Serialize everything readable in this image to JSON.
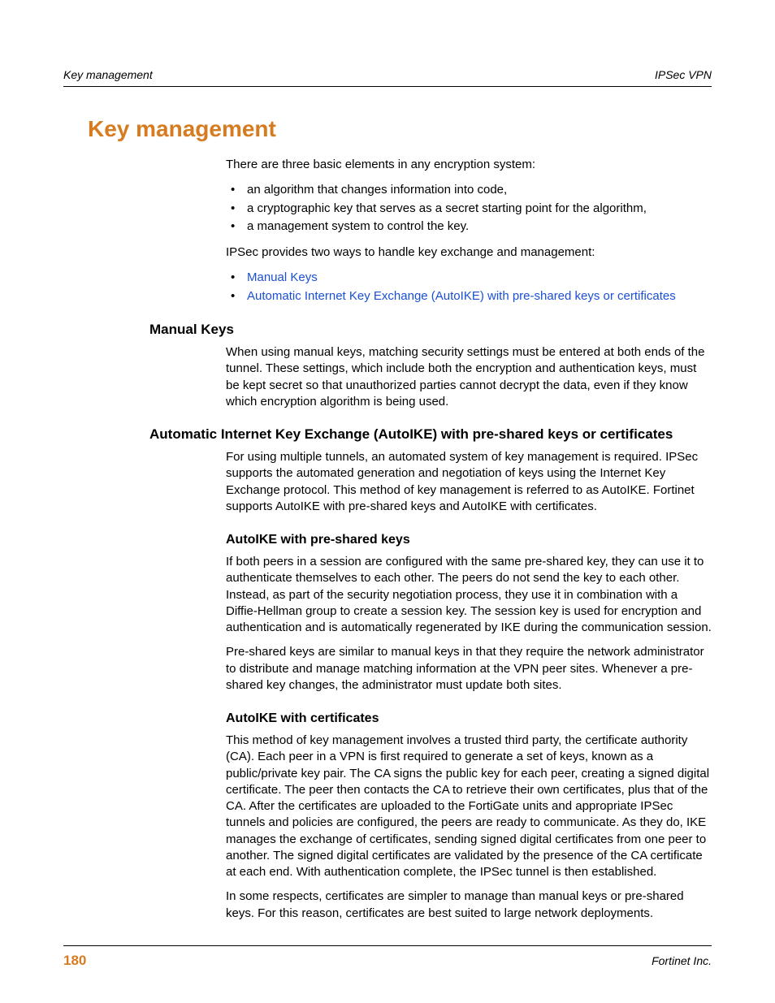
{
  "runningHead": {
    "left": "Key management",
    "right": "IPSec VPN"
  },
  "h1": "Key management",
  "intro": "There are three basic elements in any encryption system:",
  "introBullets": [
    "an algorithm that changes information into code,",
    "a cryptographic key that serves as a secret starting point for the algorithm,",
    "a management system to control the key."
  ],
  "intro2": "IPSec provides two ways to handle key exchange and management:",
  "links": [
    "Manual Keys",
    "Automatic Internet Key Exchange (AutoIKE) with pre-shared keys or certificates"
  ],
  "sections": {
    "manualKeys": {
      "title": "Manual Keys",
      "para": "When using manual keys, matching security settings must be entered at both ends of the tunnel. These settings, which include both the encryption and authentication keys, must be kept secret so that unauthorized parties cannot decrypt the data, even if they know which encryption algorithm is being used."
    },
    "autoike": {
      "title": "Automatic Internet Key Exchange (AutoIKE) with pre-shared keys or certificates",
      "para": "For using multiple tunnels, an automated system of key management is required. IPSec supports the automated generation and negotiation of keys using the Internet Key Exchange protocol. This method of key management is referred to as AutoIKE. Fortinet supports AutoIKE with pre-shared keys and AutoIKE with certificates.",
      "sub1": {
        "title": "AutoIKE with pre-shared keys",
        "p1": "If both peers in a session are configured with the same pre-shared key, they can use it to authenticate themselves to each other. The peers do not send the key to each other. Instead, as part of the security negotiation process, they use it in combination with a Diffie-Hellman group to create a session key. The session key is used for encryption and authentication and is automatically regenerated by IKE during the communication session.",
        "p2": "Pre-shared keys are similar to manual keys in that they require the network administrator to distribute and manage matching information at the VPN peer sites. Whenever a pre-shared key changes, the administrator must update both sites."
      },
      "sub2": {
        "title": "AutoIKE with certificates",
        "p1": "This method of key management involves a trusted third party, the certificate authority (CA). Each peer in a VPN is first required to generate a set of keys, known as a public/private key pair. The CA signs the public key for each peer, creating a signed digital certificate. The peer then contacts the CA to retrieve their own certificates, plus that of the CA. After the certificates are uploaded to the FortiGate units and appropriate IPSec tunnels and policies are configured, the peers are ready to communicate. As they do, IKE manages the exchange of certificates, sending signed digital certificates from one peer to another. The signed digital certificates are validated by the presence of the CA certificate at each end. With authentication complete, the IPSec tunnel is then established.",
        "p2": "In some respects, certificates are simpler to manage than manual keys or pre-shared keys. For this reason, certificates are best suited to large network deployments."
      }
    }
  },
  "footer": {
    "pageNum": "180",
    "right": "Fortinet Inc."
  },
  "colors": {
    "accent": "#d67b1f",
    "link": "#1a4fd6"
  }
}
